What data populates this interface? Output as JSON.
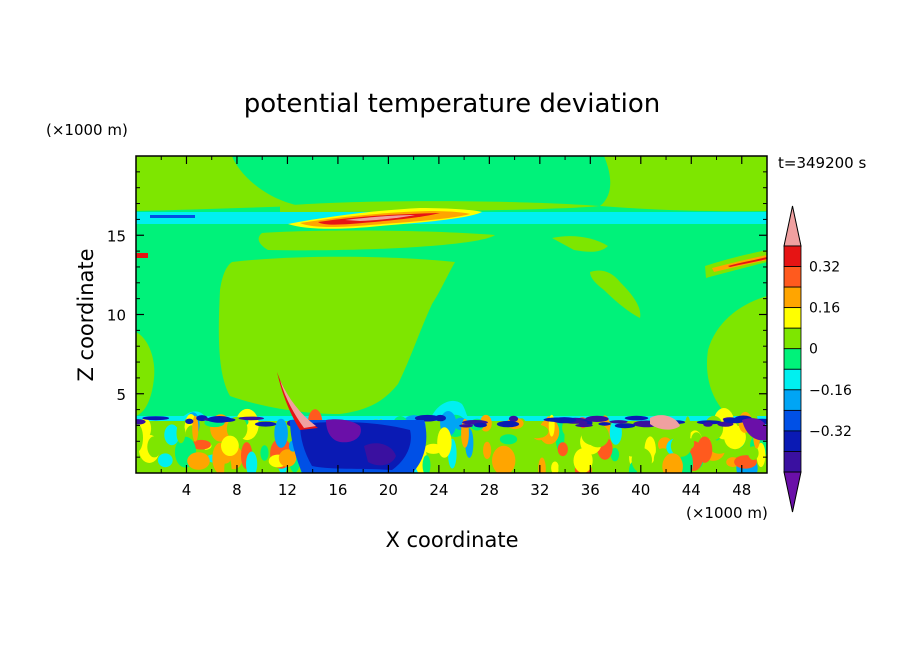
{
  "chart_data": {
    "type": "heatmap",
    "title": "potential temperature deviation",
    "xlabel": "X coordinate",
    "ylabel": "Z coordinate",
    "x_unit": "(×1000 m)",
    "y_unit": "(×1000 m)",
    "time_label": "t=349200 s",
    "xlim": [
      0,
      50
    ],
    "ylim": [
      0,
      20
    ],
    "x_ticks": [
      4,
      8,
      12,
      16,
      20,
      24,
      28,
      32,
      36,
      40,
      44,
      48
    ],
    "y_ticks": [
      5,
      10,
      15
    ],
    "colorbar": {
      "levels": [
        -0.48,
        -0.4,
        -0.32,
        -0.24,
        -0.16,
        -0.08,
        0,
        0.08,
        0.16,
        0.24,
        0.32,
        0.4
      ],
      "colors": [
        "#6a0fa8",
        "#3a10a0",
        "#0a1ab4",
        "#0050e6",
        "#00a5f5",
        "#00f0f0",
        "#00f27a",
        "#7ee600",
        "#ffff00",
        "#ffa500",
        "#ff5a1e",
        "#e61414",
        "#f0a0a0"
      ],
      "tick_labels": [
        {
          "value": 0.32,
          "label": "0.32"
        },
        {
          "value": 0.16,
          "label": "0.16"
        },
        {
          "value": 0,
          "label": "0"
        },
        {
          "value": -0.16,
          "label": "−0.16"
        },
        {
          "value": -0.32,
          "label": "−0.32"
        }
      ]
    }
  }
}
